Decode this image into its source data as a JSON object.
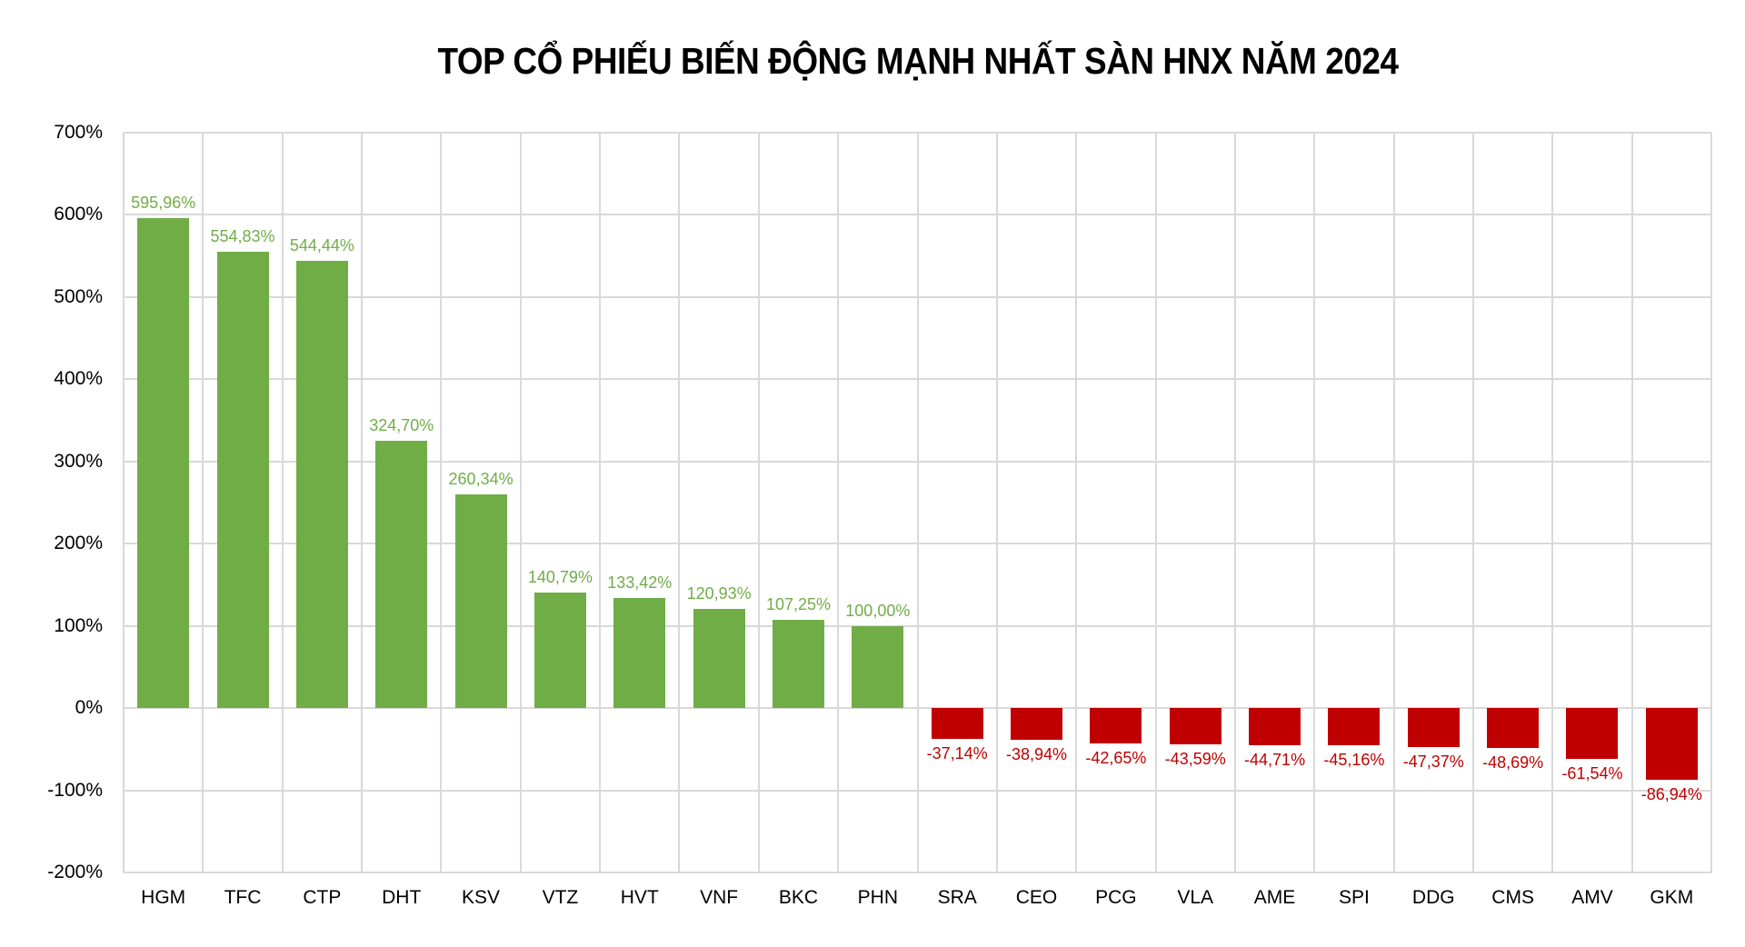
{
  "chart_data": {
    "type": "bar",
    "title": "TOP CỔ PHIẾU BIẾN ĐỘNG MẠNH NHẤT SÀN HNX NĂM 2024",
    "xlabel": "",
    "ylabel": "",
    "ylim": [
      -200,
      700
    ],
    "yticks": [
      700,
      600,
      500,
      400,
      300,
      200,
      100,
      0,
      -100,
      -200
    ],
    "ytick_labels": [
      "700%",
      "600%",
      "500%",
      "400%",
      "300%",
      "200%",
      "100%",
      "0%",
      "-100%",
      "-200%"
    ],
    "grid": true,
    "legend": null,
    "categories": [
      "HGM",
      "TFC",
      "CTP",
      "DHT",
      "KSV",
      "VTZ",
      "HVT",
      "VNF",
      "BKC",
      "PHN",
      "SRA",
      "CEO",
      "PCG",
      "VLA",
      "AME",
      "SPI",
      "DDG",
      "CMS",
      "AMV",
      "GKM"
    ],
    "values": [
      595.96,
      554.83,
      544.44,
      324.7,
      260.34,
      140.79,
      133.42,
      120.93,
      107.25,
      100.0,
      -37.14,
      -38.94,
      -42.65,
      -43.59,
      -44.71,
      -45.16,
      -47.37,
      -48.69,
      -61.54,
      -86.94
    ],
    "value_labels": [
      "595,96%",
      "554,83%",
      "544,44%",
      "324,70%",
      "260,34%",
      "140,79%",
      "133,42%",
      "120,93%",
      "107,25%",
      "100,00%",
      "-37,14%",
      "-38,94%",
      "-42,65%",
      "-43,59%",
      "-44,71%",
      "-45,16%",
      "-47,37%",
      "-48,69%",
      "-61,54%",
      "-86,94%"
    ],
    "colors": {
      "positive": "#70AD47",
      "negative": "#C00000",
      "grid": "#D9D9D9",
      "text": "#000000"
    }
  }
}
